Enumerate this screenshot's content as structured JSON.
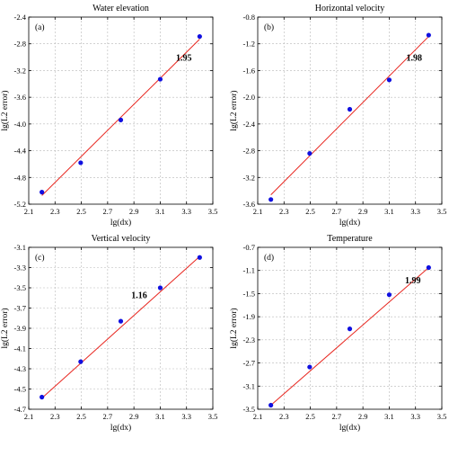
{
  "chart_data": [
    {
      "type": "scatter",
      "title": "Water elevation",
      "panel_label": "(a)",
      "xlabel": "lg(dx)",
      "ylabel": "lg(L2 error)",
      "xlim": [
        2.1,
        3.5
      ],
      "ylim": [
        -5.2,
        -2.4
      ],
      "xticks": [
        "2.1",
        "2.3",
        "2.5",
        "2.7",
        "2.9",
        "3.1",
        "3.3",
        "3.5"
      ],
      "yticks": [
        "-5.2",
        "-4.8",
        "-4.4",
        "-4.0",
        "-3.6",
        "-3.2",
        "-2.8",
        "-2.4"
      ],
      "x": [
        2.2,
        2.495,
        2.8,
        3.1,
        3.4
      ],
      "y": [
        -5.02,
        -4.58,
        -3.94,
        -3.33,
        -2.69
      ],
      "fit_line": {
        "x": [
          2.2,
          3.4
        ],
        "y": [
          -5.07,
          -2.73
        ]
      },
      "slope_label": "1.95",
      "slope_label_pos": {
        "x": 3.28,
        "y": -3.05
      },
      "grid": true
    },
    {
      "type": "scatter",
      "title": "Horizontal velocity",
      "panel_label": "(b)",
      "xlabel": "lg(dx)",
      "ylabel": "lg(L2 error)",
      "xlim": [
        2.1,
        3.5
      ],
      "ylim": [
        -3.6,
        -0.8
      ],
      "xticks": [
        "2.1",
        "2.3",
        "2.5",
        "2.7",
        "2.9",
        "3.1",
        "3.3",
        "3.5"
      ],
      "yticks": [
        "-3.6",
        "-3.2",
        "-2.8",
        "-2.4",
        "-2.0",
        "-1.6",
        "-1.2",
        "-0.8"
      ],
      "x": [
        2.2,
        2.495,
        2.8,
        3.1,
        3.4
      ],
      "y": [
        -3.53,
        -2.84,
        -2.18,
        -1.74,
        -1.07
      ],
      "fit_line": {
        "x": [
          2.2,
          3.4
        ],
        "y": [
          -3.46,
          -1.09
        ]
      },
      "slope_label": "1.98",
      "slope_label_pos": {
        "x": 3.29,
        "y": -1.45
      },
      "grid": true
    },
    {
      "type": "scatter",
      "title": "Vertical velocity",
      "panel_label": "(c)",
      "xlabel": "lg(dx)",
      "ylabel": "lg(L2 error)",
      "xlim": [
        2.1,
        3.5
      ],
      "ylim": [
        -4.7,
        -3.1
      ],
      "xticks": [
        "2.1",
        "2.3",
        "2.5",
        "2.7",
        "2.9",
        "3.1",
        "3.3",
        "3.5"
      ],
      "yticks": [
        "-4.7",
        "-4.5",
        "-4.3",
        "-4.1",
        "-3.9",
        "-3.7",
        "-3.5",
        "-3.3",
        "-3.1"
      ],
      "x": [
        2.2,
        2.495,
        2.8,
        3.1,
        3.4
      ],
      "y": [
        -4.58,
        -4.23,
        -3.83,
        -3.5,
        -3.2
      ],
      "fit_line": {
        "x": [
          2.2,
          3.4
        ],
        "y": [
          -4.59,
          -3.19
        ]
      },
      "slope_label": "1.16",
      "slope_label_pos": {
        "x": 2.94,
        "y": -3.6
      },
      "grid": true
    },
    {
      "type": "scatter",
      "title": "Temperature",
      "panel_label": "(d)",
      "xlabel": "lg(dx)",
      "ylabel": "lg(L2 error)",
      "xlim": [
        2.1,
        3.5
      ],
      "ylim": [
        -3.5,
        -0.7
      ],
      "xticks": [
        "2.1",
        "2.3",
        "2.5",
        "2.7",
        "2.9",
        "3.1",
        "3.3",
        "3.5"
      ],
      "yticks": [
        "-3.5",
        "-3.1",
        "-2.7",
        "-2.3",
        "-1.9",
        "-1.5",
        "-1.1",
        "-0.7"
      ],
      "x": [
        2.2,
        2.495,
        2.8,
        3.1,
        3.4
      ],
      "y": [
        -3.43,
        -2.77,
        -2.11,
        -1.52,
        -1.05
      ],
      "fit_line": {
        "x": [
          2.2,
          3.4
        ],
        "y": [
          -3.43,
          -1.05
        ]
      },
      "slope_label": "1.99",
      "slope_label_pos": {
        "x": 3.28,
        "y": -1.32
      },
      "grid": true
    }
  ]
}
